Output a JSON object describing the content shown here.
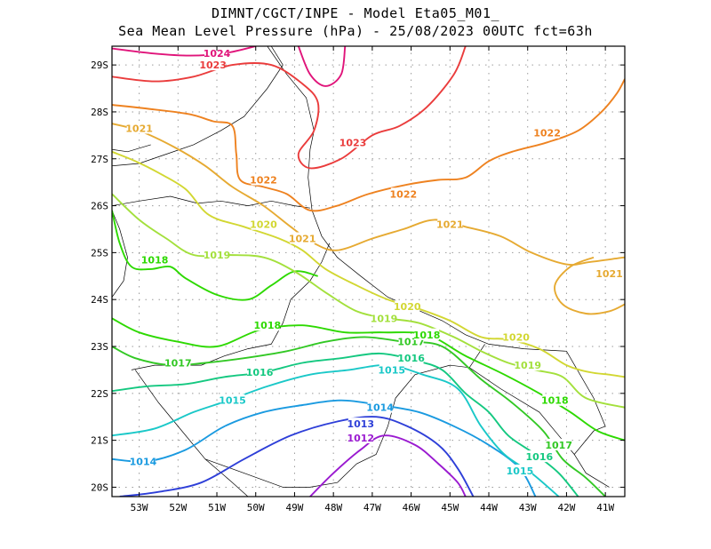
{
  "title": {
    "line1": "DIMNT/CGCT/INPE -  Model Eta05_M01_",
    "line2": "Sea Mean Level Pressure (hPa) - 25/08/2023 00UTC fct=63h"
  },
  "map": {
    "lon_range": [
      -53.7,
      -40.5
    ],
    "lat_range": [
      -29.4,
      -19.8
    ],
    "lat_ticks": [
      {
        "value": -20,
        "label": "20S"
      },
      {
        "value": -21,
        "label": "21S"
      },
      {
        "value": -22,
        "label": "22S"
      },
      {
        "value": -23,
        "label": "23S"
      },
      {
        "value": -24,
        "label": "24S"
      },
      {
        "value": -25,
        "label": "25S"
      },
      {
        "value": -26,
        "label": "26S"
      },
      {
        "value": -27,
        "label": "27S"
      },
      {
        "value": -28,
        "label": "28S"
      },
      {
        "value": -29,
        "label": "29S"
      }
    ],
    "lon_ticks": [
      {
        "value": -53,
        "label": "53W"
      },
      {
        "value": -52,
        "label": "52W"
      },
      {
        "value": -51,
        "label": "51W"
      },
      {
        "value": -50,
        "label": "50W"
      },
      {
        "value": -49,
        "label": "49W"
      },
      {
        "value": -48,
        "label": "48W"
      },
      {
        "value": -47,
        "label": "47W"
      },
      {
        "value": -46,
        "label": "46W"
      },
      {
        "value": -45,
        "label": "45W"
      },
      {
        "value": -44,
        "label": "44W"
      },
      {
        "value": -43,
        "label": "43W"
      },
      {
        "value": -42,
        "label": "42W"
      },
      {
        "value": -41,
        "label": "41W"
      }
    ]
  },
  "isobars": [
    {
      "value": "1012",
      "color": "#9a1ad0",
      "points": [
        [
          -48.6,
          -19.8
        ],
        [
          -48.0,
          -20.3
        ],
        [
          -47.3,
          -20.8
        ],
        [
          -46.7,
          -21.1
        ],
        [
          -45.9,
          -20.9
        ],
        [
          -45.3,
          -20.5
        ],
        [
          -44.8,
          -20.1
        ],
        [
          -44.6,
          -19.8
        ]
      ],
      "labels": [
        {
          "lon": -47.3,
          "lat": -21.05
        }
      ]
    },
    {
      "value": "1013",
      "color": "#2e3fd8",
      "points": [
        [
          -53.5,
          -19.8
        ],
        [
          -52.5,
          -19.9
        ],
        [
          -51.4,
          -20.1
        ],
        [
          -50.3,
          -20.6
        ],
        [
          -49.1,
          -21.1
        ],
        [
          -47.9,
          -21.4
        ],
        [
          -46.9,
          -21.5
        ],
        [
          -46.1,
          -21.3
        ],
        [
          -45.3,
          -20.9
        ],
        [
          -44.8,
          -20.4
        ],
        [
          -44.4,
          -19.8
        ]
      ],
      "labels": [
        {
          "lon": -47.3,
          "lat": -21.35
        }
      ]
    },
    {
      "value": "1014",
      "color": "#1a9ae0",
      "points": [
        [
          -53.7,
          -20.6
        ],
        [
          -52.8,
          -20.55
        ],
        [
          -51.8,
          -20.8
        ],
        [
          -50.8,
          -21.3
        ],
        [
          -49.8,
          -21.6
        ],
        [
          -48.8,
          -21.75
        ],
        [
          -47.8,
          -21.85
        ],
        [
          -46.8,
          -21.75
        ],
        [
          -45.8,
          -21.6
        ],
        [
          -44.9,
          -21.3
        ],
        [
          -44.0,
          -20.9
        ],
        [
          -43.2,
          -20.4
        ],
        [
          -42.8,
          -19.8
        ]
      ],
      "labels": [
        {
          "lon": -52.9,
          "lat": -20.55
        },
        {
          "lon": -46.8,
          "lat": -21.7
        }
      ]
    },
    {
      "value": "1015",
      "color": "#1ac8c8",
      "points": [
        [
          -53.7,
          -21.1
        ],
        [
          -52.6,
          -21.25
        ],
        [
          -51.6,
          -21.6
        ],
        [
          -50.7,
          -21.85
        ],
        [
          -49.7,
          -22.15
        ],
        [
          -48.6,
          -22.4
        ],
        [
          -47.6,
          -22.5
        ],
        [
          -46.6,
          -22.6
        ],
        [
          -45.7,
          -22.4
        ],
        [
          -44.8,
          -22.1
        ],
        [
          -44.2,
          -21.3
        ],
        [
          -43.6,
          -20.7
        ],
        [
          -42.9,
          -20.3
        ],
        [
          -42.2,
          -19.8
        ]
      ],
      "labels": [
        {
          "lon": -50.6,
          "lat": -21.85
        },
        {
          "lon": -46.5,
          "lat": -22.5
        },
        {
          "lon": -43.2,
          "lat": -20.35
        }
      ]
    },
    {
      "value": "1016",
      "color": "#14c880",
      "points": [
        [
          -53.7,
          -22.05
        ],
        [
          -52.8,
          -22.15
        ],
        [
          -51.8,
          -22.2
        ],
        [
          -50.8,
          -22.35
        ],
        [
          -49.8,
          -22.45
        ],
        [
          -48.8,
          -22.65
        ],
        [
          -47.8,
          -22.75
        ],
        [
          -46.8,
          -22.85
        ],
        [
          -45.9,
          -22.7
        ],
        [
          -45.2,
          -22.5
        ],
        [
          -44.6,
          -22.0
        ],
        [
          -44.0,
          -21.6
        ],
        [
          -43.5,
          -21.1
        ],
        [
          -42.8,
          -20.7
        ],
        [
          -42.2,
          -20.3
        ],
        [
          -41.7,
          -19.8
        ]
      ],
      "labels": [
        {
          "lon": -49.9,
          "lat": -22.45
        },
        {
          "lon": -46.0,
          "lat": -22.75
        },
        {
          "lon": -42.7,
          "lat": -20.65
        }
      ]
    },
    {
      "value": "1017",
      "color": "#32c824",
      "points": [
        [
          -53.7,
          -23.0
        ],
        [
          -53.1,
          -22.75
        ],
        [
          -52.2,
          -22.6
        ],
        [
          -51.3,
          -22.65
        ],
        [
          -50.3,
          -22.75
        ],
        [
          -49.2,
          -22.9
        ],
        [
          -48.2,
          -23.1
        ],
        [
          -47.2,
          -23.2
        ],
        [
          -46.2,
          -23.1
        ],
        [
          -45.2,
          -23.0
        ],
        [
          -44.2,
          -22.3
        ],
        [
          -43.4,
          -21.8
        ],
        [
          -42.6,
          -21.2
        ],
        [
          -42.1,
          -20.6
        ],
        [
          -41.5,
          -20.2
        ],
        [
          -41.0,
          -19.8
        ]
      ],
      "labels": [
        {
          "lon": -52.0,
          "lat": -22.65
        },
        {
          "lon": -46.0,
          "lat": -23.1
        },
        {
          "lon": -42.2,
          "lat": -20.9
        }
      ]
    },
    {
      "value": "1018",
      "color": "#2dd900",
      "points": [
        [
          -53.7,
          -23.6
        ],
        [
          -53.0,
          -23.3
        ],
        [
          -52.0,
          -23.1
        ],
        [
          -51.0,
          -23.0
        ],
        [
          -49.9,
          -23.35
        ],
        [
          -48.8,
          -23.45
        ],
        [
          -47.7,
          -23.3
        ],
        [
          -46.7,
          -23.3
        ],
        [
          -45.6,
          -23.25
        ],
        [
          -44.6,
          -22.8
        ],
        [
          -43.6,
          -22.4
        ],
        [
          -42.7,
          -22.0
        ],
        [
          -41.9,
          -21.6
        ],
        [
          -41.2,
          -21.2
        ],
        [
          -40.5,
          -21.0
        ]
      ],
      "labels": [
        {
          "lon": -49.7,
          "lat": -23.45
        },
        {
          "lon": -45.6,
          "lat": -23.25
        },
        {
          "lon": -42.3,
          "lat": -21.85
        }
      ]
    },
    {
      "value": "1018",
      "color": "#2dd900",
      "points": [
        [
          -53.7,
          -25.9
        ],
        [
          -53.5,
          -25.2
        ],
        [
          -53.2,
          -24.7
        ],
        [
          -52.7,
          -24.65
        ],
        [
          -52.2,
          -24.7
        ],
        [
          -51.8,
          -24.45
        ],
        [
          -51.0,
          -24.1
        ],
        [
          -50.2,
          -24.0
        ],
        [
          -49.6,
          -24.3
        ],
        [
          -49.0,
          -24.6
        ],
        [
          -48.4,
          -24.5
        ]
      ],
      "labels": [
        {
          "lon": -52.6,
          "lat": -24.85
        }
      ]
    },
    {
      "value": "1019",
      "color": "#a3e03c",
      "points": [
        [
          -53.7,
          -26.25
        ],
        [
          -53.0,
          -25.7
        ],
        [
          -52.3,
          -25.3
        ],
        [
          -51.6,
          -24.95
        ],
        [
          -50.7,
          -24.95
        ],
        [
          -49.8,
          -24.9
        ],
        [
          -49.0,
          -24.6
        ],
        [
          -48.2,
          -24.15
        ],
        [
          -47.4,
          -23.75
        ],
        [
          -46.6,
          -23.6
        ],
        [
          -45.8,
          -23.5
        ],
        [
          -44.9,
          -23.2
        ],
        [
          -44.2,
          -22.9
        ],
        [
          -43.5,
          -22.65
        ],
        [
          -42.8,
          -22.5
        ],
        [
          -42.1,
          -22.35
        ],
        [
          -41.5,
          -21.9
        ],
        [
          -40.5,
          -21.7
        ]
      ],
      "labels": [
        {
          "lon": -51.0,
          "lat": -24.95
        },
        {
          "lon": -46.7,
          "lat": -23.6
        },
        {
          "lon": -43.0,
          "lat": -22.6
        }
      ]
    },
    {
      "value": "1020",
      "color": "#d2d732",
      "points": [
        [
          -53.7,
          -27.15
        ],
        [
          -53.1,
          -26.95
        ],
        [
          -52.5,
          -26.7
        ],
        [
          -51.8,
          -26.35
        ],
        [
          -51.2,
          -25.8
        ],
        [
          -50.3,
          -25.55
        ],
        [
          -49.4,
          -25.3
        ],
        [
          -48.8,
          -25.05
        ],
        [
          -48.2,
          -24.65
        ],
        [
          -47.4,
          -24.3
        ],
        [
          -46.6,
          -24.0
        ],
        [
          -45.8,
          -23.8
        ],
        [
          -45.0,
          -23.55
        ],
        [
          -44.2,
          -23.2
        ],
        [
          -43.5,
          -23.15
        ],
        [
          -42.7,
          -22.95
        ],
        [
          -42.0,
          -22.6
        ],
        [
          -41.4,
          -22.45
        ],
        [
          -40.9,
          -22.4
        ],
        [
          -40.5,
          -22.35
        ]
      ],
      "labels": [
        {
          "lon": -49.8,
          "lat": -25.6
        },
        {
          "lon": -46.1,
          "lat": -23.85
        },
        {
          "lon": -43.3,
          "lat": -23.2
        }
      ]
    },
    {
      "value": "1021",
      "color": "#e6aa32",
      "points": [
        [
          -53.7,
          -27.75
        ],
        [
          -53.0,
          -27.6
        ],
        [
          -52.1,
          -27.25
        ],
        [
          -51.3,
          -26.85
        ],
        [
          -50.6,
          -26.4
        ],
        [
          -49.8,
          -26.0
        ],
        [
          -49.1,
          -25.55
        ],
        [
          -48.5,
          -25.2
        ],
        [
          -47.9,
          -25.05
        ],
        [
          -47.0,
          -25.3
        ],
        [
          -46.2,
          -25.5
        ],
        [
          -45.4,
          -25.7
        ],
        [
          -44.6,
          -25.55
        ],
        [
          -43.7,
          -25.35
        ],
        [
          -42.9,
          -25.0
        ],
        [
          -42.0,
          -24.75
        ],
        [
          -41.4,
          -24.8
        ],
        [
          -40.5,
          -24.9
        ]
      ],
      "labels": [
        {
          "lon": -53.0,
          "lat": -27.65
        },
        {
          "lon": -48.8,
          "lat": -25.3
        },
        {
          "lon": -45.0,
          "lat": -25.6
        }
      ]
    },
    {
      "value": "1021",
      "color": "#e6aa32",
      "points": [
        [
          -41.3,
          -24.9
        ],
        [
          -41.9,
          -24.7
        ],
        [
          -42.3,
          -24.3
        ],
        [
          -42.1,
          -23.9
        ],
        [
          -41.5,
          -23.7
        ],
        [
          -40.9,
          -23.75
        ],
        [
          -40.5,
          -23.9
        ]
      ],
      "labels": [
        {
          "lon": -40.9,
          "lat": -24.55
        }
      ]
    },
    {
      "value": "1022",
      "color": "#ee8220",
      "points": [
        [
          -53.7,
          -28.15
        ],
        [
          -52.6,
          -28.05
        ],
        [
          -51.7,
          -27.95
        ],
        [
          -51.1,
          -27.8
        ],
        [
          -50.6,
          -27.7
        ],
        [
          -50.5,
          -27.1
        ],
        [
          -50.4,
          -26.55
        ],
        [
          -49.8,
          -26.4
        ],
        [
          -49.2,
          -26.25
        ],
        [
          -48.6,
          -25.9
        ],
        [
          -47.9,
          -26.0
        ],
        [
          -47.1,
          -26.25
        ],
        [
          -46.1,
          -26.45
        ],
        [
          -45.3,
          -26.55
        ],
        [
          -44.6,
          -26.6
        ],
        [
          -44.0,
          -26.95
        ],
        [
          -43.4,
          -27.15
        ],
        [
          -42.5,
          -27.35
        ],
        [
          -41.7,
          -27.6
        ],
        [
          -41.1,
          -28.0
        ],
        [
          -40.7,
          -28.4
        ],
        [
          -40.5,
          -28.7
        ]
      ],
      "labels": [
        {
          "lon": -49.8,
          "lat": -26.55
        },
        {
          "lon": -46.2,
          "lat": -26.25
        },
        {
          "lon": -42.5,
          "lat": -27.55
        }
      ]
    },
    {
      "value": "1023",
      "color": "#ea3c3c",
      "points": [
        [
          -53.7,
          -28.75
        ],
        [
          -52.6,
          -28.65
        ],
        [
          -51.6,
          -28.75
        ],
        [
          -50.6,
          -29.0
        ],
        [
          -49.6,
          -29.0
        ],
        [
          -48.8,
          -28.6
        ],
        [
          -48.4,
          -28.2
        ],
        [
          -48.5,
          -27.6
        ],
        [
          -48.9,
          -27.1
        ],
        [
          -48.6,
          -26.8
        ],
        [
          -47.8,
          -27.0
        ],
        [
          -47.0,
          -27.5
        ],
        [
          -46.3,
          -27.7
        ],
        [
          -45.6,
          -28.1
        ],
        [
          -44.9,
          -28.8
        ],
        [
          -44.6,
          -29.4
        ]
      ],
      "labels": [
        {
          "lon": -51.1,
          "lat": -29.0
        },
        {
          "lon": -47.5,
          "lat": -27.35
        }
      ]
    },
    {
      "value": "1024",
      "color": "#e0147a",
      "points": [
        [
          -53.7,
          -29.35
        ],
        [
          -52.7,
          -29.25
        ],
        [
          -51.7,
          -29.2
        ],
        [
          -50.8,
          -29.25
        ],
        [
          -50.0,
          -29.4
        ]
      ],
      "labels": [
        {
          "lon": -51.0,
          "lat": -29.25
        }
      ]
    },
    {
      "value": "1024",
      "color": "#e0147a",
      "points": [
        [
          -48.9,
          -29.4
        ],
        [
          -48.6,
          -28.8
        ],
        [
          -48.2,
          -28.55
        ],
        [
          -47.8,
          -28.8
        ],
        [
          -47.7,
          -29.4
        ]
      ],
      "labels": []
    }
  ]
}
